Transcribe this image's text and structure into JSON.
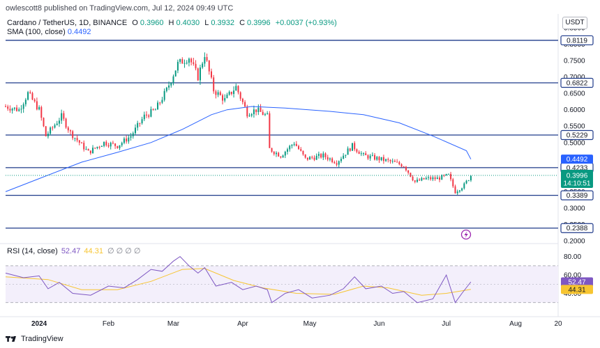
{
  "header": {
    "publisher": "owlescott8 published on TradingView.com, Jul 12, 2024 09:49 UTC",
    "currency": "USDT"
  },
  "legend": {
    "symbol": "Cardano / TetherUS, 1D, BINANCE",
    "o_label": "O",
    "o_value": "0.3960",
    "h_label": "H",
    "h_value": "0.4030",
    "l_label": "L",
    "l_value": "0.3932",
    "c_label": "C",
    "c_value": "0.3996",
    "change": "+0.0037 (+0.93%)",
    "sma_label": "SMA (100, close)",
    "sma_value": "0.4492",
    "rsi_label": "RSI (14, close)",
    "rsi_value": "52.47",
    "rsi_ma_value": "44.31",
    "rsi_zeros": "∅ ∅ ∅ ∅"
  },
  "footer": {
    "brand": "TradingView"
  },
  "colors": {
    "up": "#089981",
    "down": "#f23645",
    "sma": "#2962ff",
    "level": "#1e3a8a",
    "rsi": "#7e57c2",
    "rsi_ma": "#f7c531",
    "rsi_band": "#f3effb",
    "price_tag": "#089981",
    "alert": "#9c27b0"
  },
  "icons": {
    "alert": "lightning-bolt-icon",
    "logo": "tradingview-logo-icon"
  },
  "chart_data": [
    {
      "type": "candlestick",
      "title": "Cardano / TetherUS, 1D, BINANCE",
      "x_range": [
        "2023-12-17",
        "2024-08-20"
      ],
      "ylim": [
        0.2,
        0.85
      ],
      "y_ticks": [
        "0.8500",
        "0.8000",
        "0.7500",
        "0.7000",
        "0.6500",
        "0.6000",
        "0.5500",
        "0.5000",
        "0.4500",
        "0.4000",
        "0.3500",
        "0.3000",
        "0.2500",
        "0.2000"
      ],
      "x_ticks": [
        {
          "label": "2024",
          "date": "2024-01-01"
        },
        {
          "label": "Feb",
          "date": "2024-02-01"
        },
        {
          "label": "Mar",
          "date": "2024-03-01"
        },
        {
          "label": "Apr",
          "date": "2024-04-01"
        },
        {
          "label": "May",
          "date": "2024-05-01"
        },
        {
          "label": "Jun",
          "date": "2024-06-01"
        },
        {
          "label": "Jul",
          "date": "2024-07-01"
        },
        {
          "label": "Aug",
          "date": "2024-08-01"
        },
        {
          "label": "20",
          "date": "2024-08-20"
        }
      ],
      "close_path": [
        [
          "2023-12-17",
          0.61
        ],
        [
          "2023-12-23",
          0.6
        ],
        [
          "2023-12-27",
          0.65
        ],
        [
          "2024-01-01",
          0.6
        ],
        [
          "2024-01-04",
          0.52
        ],
        [
          "2024-01-11",
          0.58
        ],
        [
          "2024-01-15",
          0.53
        ],
        [
          "2024-01-23",
          0.47
        ],
        [
          "2024-01-30",
          0.5
        ],
        [
          "2024-02-05",
          0.49
        ],
        [
          "2024-02-11",
          0.52
        ],
        [
          "2024-02-17",
          0.58
        ],
        [
          "2024-02-22",
          0.6
        ],
        [
          "2024-02-27",
          0.66
        ],
        [
          "2024-03-03",
          0.74
        ],
        [
          "2024-03-08",
          0.76
        ],
        [
          "2024-03-12",
          0.7
        ],
        [
          "2024-03-15",
          0.77
        ],
        [
          "2024-03-19",
          0.66
        ],
        [
          "2024-03-24",
          0.63
        ],
        [
          "2024-03-29",
          0.67
        ],
        [
          "2024-04-03",
          0.59
        ],
        [
          "2024-04-07",
          0.6
        ],
        [
          "2024-04-12",
          0.58
        ],
        [
          "2024-04-13",
          0.48
        ],
        [
          "2024-04-18",
          0.46
        ],
        [
          "2024-04-24",
          0.5
        ],
        [
          "2024-04-29",
          0.45
        ],
        [
          "2024-05-07",
          0.46
        ],
        [
          "2024-05-13",
          0.44
        ],
        [
          "2024-05-20",
          0.49
        ],
        [
          "2024-05-25",
          0.46
        ],
        [
          "2024-06-01",
          0.45
        ],
        [
          "2024-06-07",
          0.44
        ],
        [
          "2024-06-12",
          0.43
        ],
        [
          "2024-06-17",
          0.38
        ],
        [
          "2024-06-22",
          0.39
        ],
        [
          "2024-06-27",
          0.39
        ],
        [
          "2024-07-02",
          0.4
        ],
        [
          "2024-07-05",
          0.35
        ],
        [
          "2024-07-09",
          0.37
        ],
        [
          "2024-07-12",
          0.3996
        ]
      ],
      "sma_path": [
        [
          "2023-12-17",
          0.35
        ],
        [
          "2024-01-01",
          0.39
        ],
        [
          "2024-01-20",
          0.44
        ],
        [
          "2024-02-05",
          0.47
        ],
        [
          "2024-02-20",
          0.5
        ],
        [
          "2024-03-05",
          0.54
        ],
        [
          "2024-03-18",
          0.585
        ],
        [
          "2024-03-25",
          0.6
        ],
        [
          "2024-04-05",
          0.61
        ],
        [
          "2024-04-20",
          0.605
        ],
        [
          "2024-05-10",
          0.595
        ],
        [
          "2024-05-25",
          0.585
        ],
        [
          "2024-06-10",
          0.56
        ],
        [
          "2024-06-25",
          0.52
        ],
        [
          "2024-07-10",
          0.475
        ],
        [
          "2024-07-12",
          0.4492
        ]
      ],
      "support_resistance_levels": [
        {
          "value": 0.8119,
          "label": "0.8119"
        },
        {
          "value": 0.6822,
          "label": "0.6822"
        },
        {
          "value": 0.5229,
          "label": "0.5229"
        },
        {
          "value": 0.4233,
          "label": "0.4233"
        },
        {
          "value": 0.3389,
          "label": "0.3389"
        },
        {
          "value": 0.2388,
          "label": "0.2388"
        }
      ],
      "sma_tag": {
        "value": 0.4492,
        "label": "0.4492"
      },
      "last_price": {
        "value": 0.3996,
        "label": "0.3996",
        "countdown": "14:10:51"
      }
    },
    {
      "type": "line",
      "title": "RSI (14, close)",
      "ylim": [
        20,
        85
      ],
      "y_ticks": [
        "80.00",
        "60.00",
        "40.00"
      ],
      "bands": [
        70,
        30
      ],
      "midline": 50,
      "rsi_path": [
        [
          "2023-12-17",
          62
        ],
        [
          "2023-12-25",
          57
        ],
        [
          "2024-01-01",
          59
        ],
        [
          "2024-01-05",
          45
        ],
        [
          "2024-01-10",
          52
        ],
        [
          "2024-01-16",
          40
        ],
        [
          "2024-01-24",
          38
        ],
        [
          "2024-02-01",
          48
        ],
        [
          "2024-02-08",
          46
        ],
        [
          "2024-02-14",
          55
        ],
        [
          "2024-02-20",
          66
        ],
        [
          "2024-02-25",
          64
        ],
        [
          "2024-03-01",
          75
        ],
        [
          "2024-03-04",
          80
        ],
        [
          "2024-03-08",
          70
        ],
        [
          "2024-03-12",
          62
        ],
        [
          "2024-03-15",
          68
        ],
        [
          "2024-03-20",
          48
        ],
        [
          "2024-03-27",
          52
        ],
        [
          "2024-04-01",
          44
        ],
        [
          "2024-04-07",
          48
        ],
        [
          "2024-04-12",
          44
        ],
        [
          "2024-04-14",
          30
        ],
        [
          "2024-04-20",
          40
        ],
        [
          "2024-04-26",
          44
        ],
        [
          "2024-05-02",
          35
        ],
        [
          "2024-05-10",
          38
        ],
        [
          "2024-05-16",
          45
        ],
        [
          "2024-05-21",
          58
        ],
        [
          "2024-05-26",
          45
        ],
        [
          "2024-06-02",
          48
        ],
        [
          "2024-06-07",
          40
        ],
        [
          "2024-06-12",
          42
        ],
        [
          "2024-06-18",
          30
        ],
        [
          "2024-06-25",
          34
        ],
        [
          "2024-07-01",
          60
        ],
        [
          "2024-07-05",
          30
        ],
        [
          "2024-07-08",
          40
        ],
        [
          "2024-07-12",
          52.47
        ]
      ],
      "rsi_ma_path": [
        [
          "2023-12-17",
          58
        ],
        [
          "2024-01-05",
          55
        ],
        [
          "2024-01-20",
          44
        ],
        [
          "2024-02-05",
          44
        ],
        [
          "2024-02-20",
          53
        ],
        [
          "2024-03-05",
          66
        ],
        [
          "2024-03-15",
          67
        ],
        [
          "2024-03-28",
          54
        ],
        [
          "2024-04-10",
          46
        ],
        [
          "2024-04-25",
          40
        ],
        [
          "2024-05-12",
          39
        ],
        [
          "2024-05-25",
          48
        ],
        [
          "2024-06-05",
          46
        ],
        [
          "2024-06-20",
          38
        ],
        [
          "2024-07-01",
          40
        ],
        [
          "2024-07-12",
          44.31
        ]
      ],
      "rsi_tag": {
        "value": 52.47,
        "label": "52.47"
      },
      "rsi_ma_tag": {
        "value": 44.31,
        "label": "44.31"
      }
    }
  ]
}
